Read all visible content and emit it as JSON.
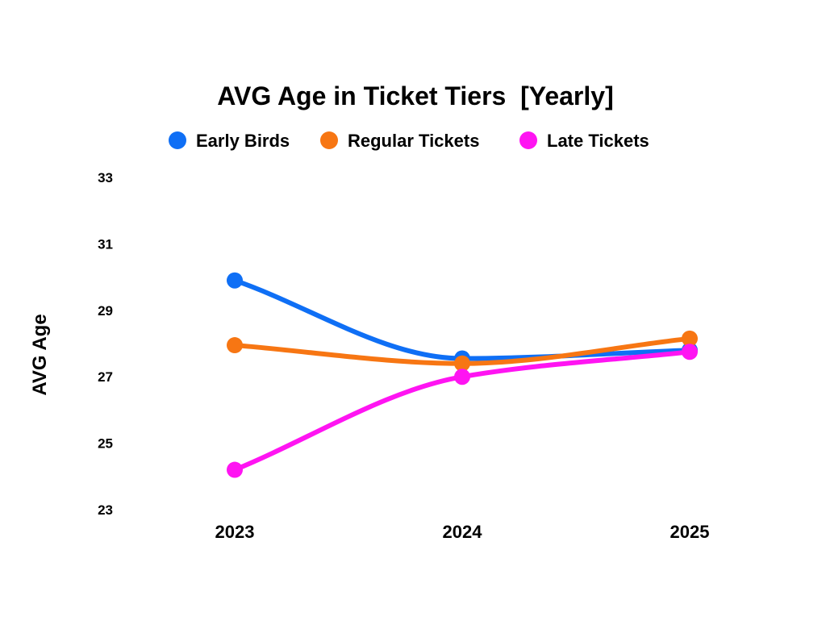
{
  "colors": {
    "early_birds": "#0F6FF5",
    "regular_tickets": "#F77613",
    "late_tickets": "#FF14F2",
    "background": "#FFFFFF",
    "text": "#000000"
  },
  "chart_data": {
    "type": "line",
    "title": "AVG Age in Ticket Tiers  [Yearly]",
    "xlabel": "",
    "ylabel": "AVG Age",
    "categories": [
      "2023",
      "2024",
      "2025"
    ],
    "series": [
      {
        "name": "Early Birds",
        "color": "#0F6FF5",
        "values": [
          29.9,
          27.55,
          27.8
        ]
      },
      {
        "name": "Regular Tickets",
        "color": "#F77613",
        "values": [
          27.95,
          27.4,
          28.15
        ]
      },
      {
        "name": "Late Tickets",
        "color": "#FF14F2",
        "values": [
          24.2,
          27.0,
          27.75
        ]
      }
    ],
    "ylim": [
      23,
      33
    ],
    "yticks": [
      "23",
      "25",
      "27",
      "29",
      "31",
      "33"
    ],
    "legend_position": "top-center",
    "grid": false,
    "line_style": "smooth",
    "markers": true
  }
}
